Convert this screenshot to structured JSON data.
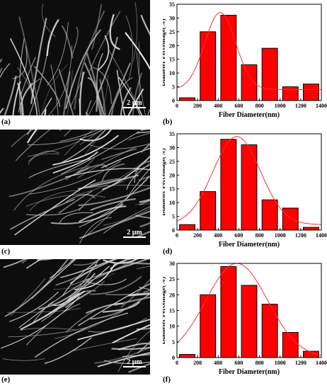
{
  "panels": [
    {
      "sem_label": "(a)",
      "scale_text": "2 μm",
      "chart_label": "(b)"
    },
    {
      "sem_label": "(c)",
      "scale_text": "2 μm",
      "chart_label": "(d)"
    },
    {
      "sem_label": "(e)",
      "scale_text": "2 μm",
      "chart_label": "(f)"
    }
  ],
  "chart_data": [
    {
      "type": "bar",
      "xlabel": "Fiber Diameter(nm)",
      "ylabel": "Diameter Percentage(%)",
      "x": [
        100,
        300,
        500,
        700,
        900,
        1100,
        1300
      ],
      "values": [
        1,
        25,
        31,
        13,
        19,
        5,
        6
      ],
      "xlim": [
        0,
        1400
      ],
      "ylim": [
        0,
        35
      ],
      "xticks": [
        0,
        200,
        400,
        600,
        800,
        1000,
        1200,
        1400
      ],
      "yticks": [
        0,
        5,
        10,
        15,
        20,
        25,
        30,
        35
      ],
      "fit_curve": {
        "type": "gaussian",
        "peak_x": 420,
        "peak_y": 32,
        "sigma": 150,
        "baseline": 4
      },
      "bar_color": "#ff0000"
    },
    {
      "type": "bar",
      "xlabel": "Fiber Diameter(nm)",
      "ylabel": "Diameter Percentage(%)",
      "x": [
        100,
        300,
        500,
        700,
        900,
        1100,
        1300
      ],
      "values": [
        2,
        14,
        33,
        31,
        11,
        8,
        1
      ],
      "xlim": [
        0,
        1400
      ],
      "ylim": [
        0,
        35
      ],
      "xticks": [
        0,
        200,
        400,
        600,
        800,
        1000,
        1200,
        1400
      ],
      "yticks": [
        0,
        5,
        10,
        15,
        20,
        25,
        30,
        35
      ],
      "fit_curve": {
        "type": "gaussian",
        "peak_x": 580,
        "peak_y": 34,
        "sigma": 230,
        "baseline": 2
      },
      "bar_color": "#ff0000"
    },
    {
      "type": "bar",
      "xlabel": "Fiber Diameter(nm)",
      "ylabel": "Diameter Percentage(%)",
      "x": [
        100,
        300,
        500,
        700,
        900,
        1100,
        1300
      ],
      "values": [
        1,
        20,
        29,
        23,
        17,
        8,
        2
      ],
      "xlim": [
        0,
        1400
      ],
      "ylim": [
        0,
        30
      ],
      "xticks": [
        0,
        200,
        400,
        600,
        800,
        1000,
        1200,
        1400
      ],
      "yticks": [
        0,
        5,
        10,
        15,
        20,
        25,
        30
      ],
      "fit_curve": {
        "type": "gaussian",
        "peak_x": 580,
        "peak_y": 30,
        "sigma": 300,
        "baseline": 0
      },
      "bar_color": "#ff0000"
    }
  ]
}
